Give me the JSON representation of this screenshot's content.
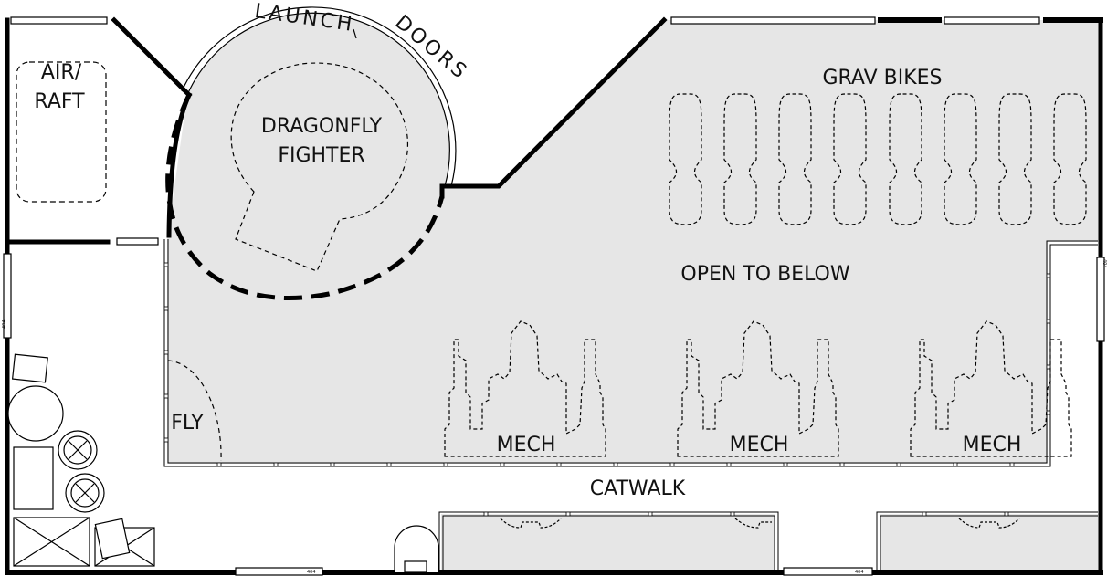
{
  "labels": {
    "air_raft_1": "AIR/",
    "air_raft_2": "RAFT",
    "launch": "LAUNCH",
    "doors": "DOORS",
    "dragonfly_1": "DRAGONFLY",
    "dragonfly_2": "FIGHTER",
    "grav_bikes": "GRAV BIKES",
    "open_below": "OPEN TO BELOW",
    "fly": "FLY",
    "mech_1": "MECH",
    "mech_2": "MECH",
    "mech_3": "MECH",
    "catwalk": "CATWALK",
    "door_code": "404"
  },
  "style": {
    "floor_fill": "#e6e6e6",
    "wall_color": "#000000",
    "background": "#ffffff"
  }
}
